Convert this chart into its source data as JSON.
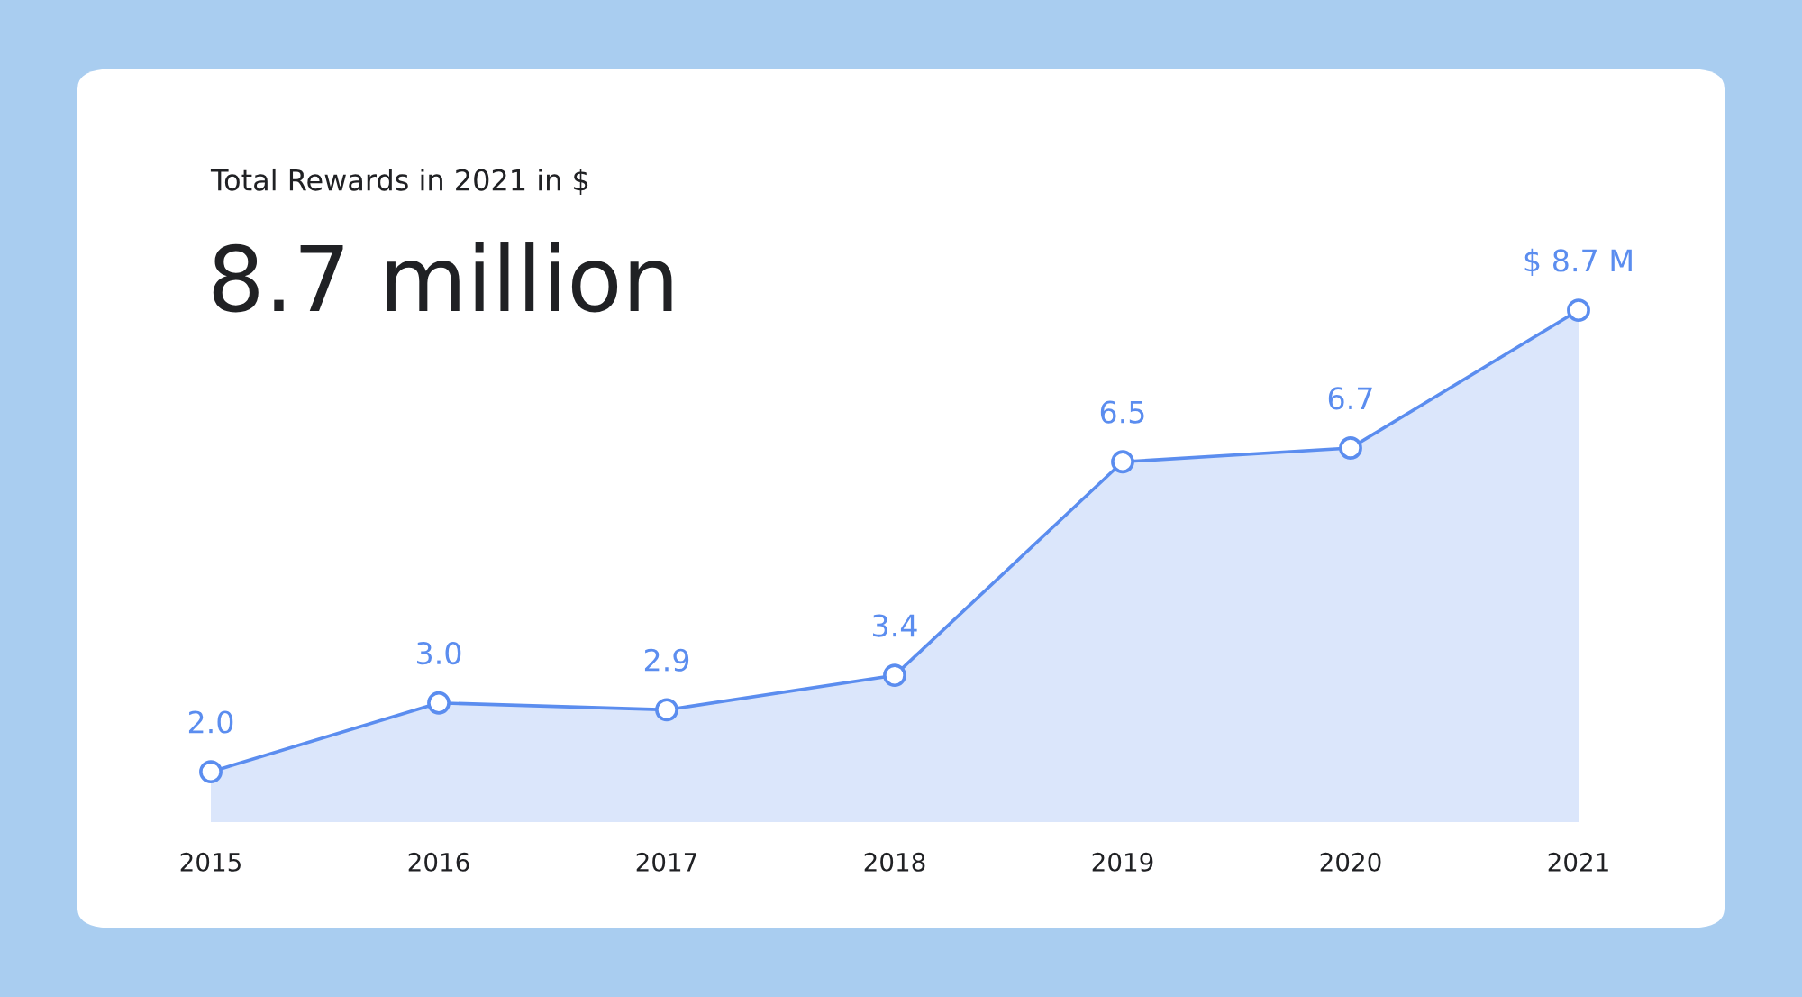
{
  "chart_data": {
    "type": "area",
    "title": "Total Rewards in 2021 in $",
    "subtitle": "8.7 million",
    "categories": [
      "2015",
      "2016",
      "2017",
      "2018",
      "2019",
      "2020",
      "2021"
    ],
    "series": [
      {
        "color": "#5b8def",
        "values": [
          2.0,
          3.0,
          2.9,
          3.4,
          6.5,
          6.7,
          8.7
        ],
        "value_labels": [
          "2.0",
          "3.0",
          "2.9",
          "3.4",
          "6.5",
          "6.7",
          "$ 8.7 M"
        ]
      }
    ],
    "tick_labels": "x",
    "grid": false,
    "legend": false,
    "marker": "circle",
    "line_style": "solid"
  }
}
